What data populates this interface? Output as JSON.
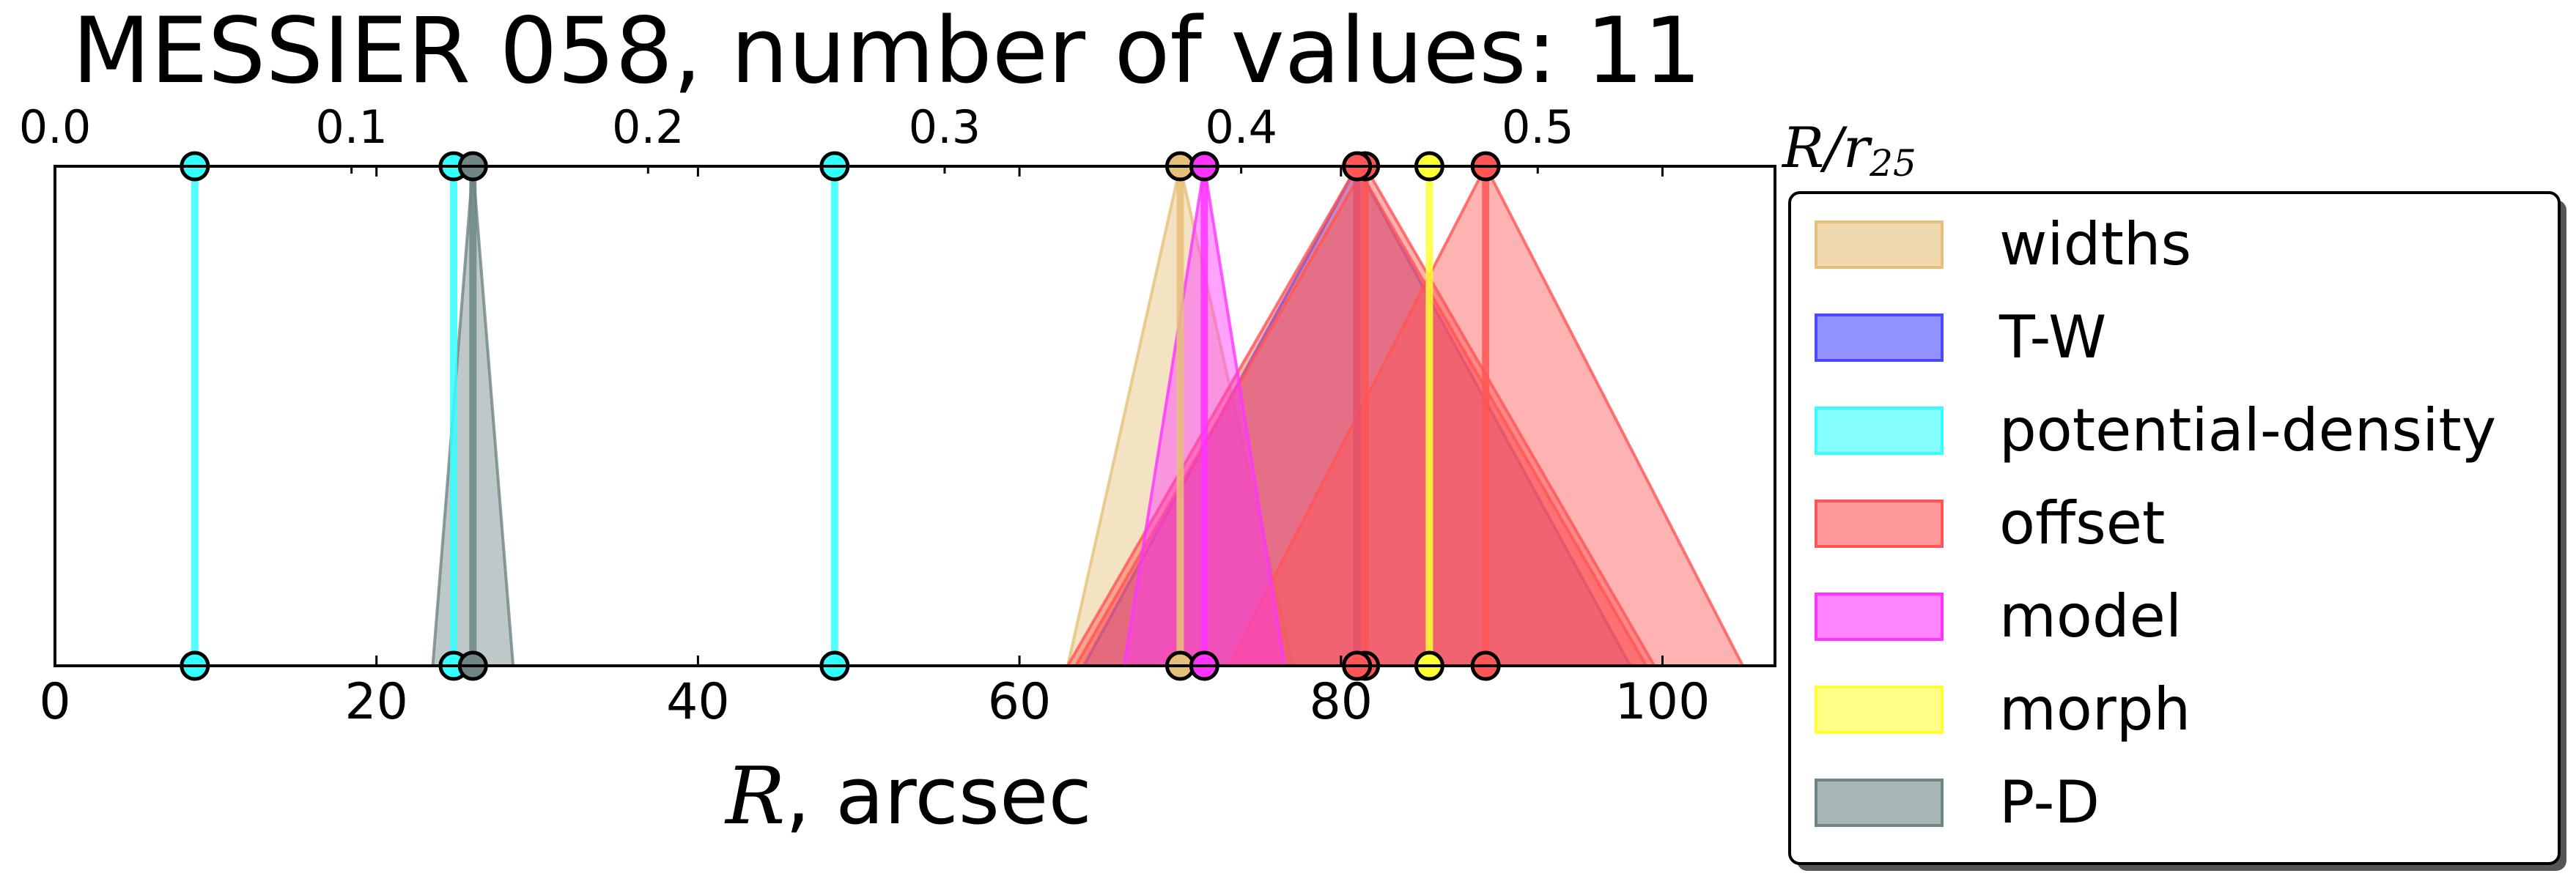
{
  "chart_data": {
    "type": "scatter",
    "title": "MESSIER 058, number of values: 11",
    "xlabel_var": "R",
    "xlabel_unit": ", arcsec",
    "top_axis_label": "R/r",
    "top_axis_label_sub": "25",
    "xlim": [
      0,
      107
    ],
    "xticks": [
      0,
      20,
      40,
      60,
      80,
      100
    ],
    "top_xlim": [
      0.0,
      0.58
    ],
    "top_xticks": [
      "0.0",
      "0.1",
      "0.2",
      "0.3",
      "0.4",
      "0.5"
    ],
    "legend_position": "right, outside plot",
    "series": [
      {
        "name": "widths",
        "color": "#e6c07a",
        "points": [
          {
            "x": 70.0,
            "err": 7.0
          }
        ]
      },
      {
        "name": "T-W",
        "color": "#4a4aff",
        "points": [
          {
            "x": 81.0,
            "err": 17.0
          }
        ]
      },
      {
        "name": "potential-density",
        "color": "#33ffff",
        "points": [
          {
            "x": 8.7,
            "err": 0.0
          },
          {
            "x": 24.8,
            "err": 0.0
          },
          {
            "x": 48.5,
            "err": 0.0
          }
        ]
      },
      {
        "name": "offset",
        "color": "#ff5555",
        "points": [
          {
            "x": 81.5,
            "err": 18.0
          },
          {
            "x": 89.0,
            "err": 16.0
          },
          {
            "x": 81.0,
            "err": 18.0
          }
        ]
      },
      {
        "name": "model",
        "color": "#ff33ff",
        "points": [
          {
            "x": 71.5,
            "err": 5.0
          }
        ]
      },
      {
        "name": "morph",
        "color": "#ffff33",
        "points": [
          {
            "x": 85.5,
            "err": 0.0
          }
        ]
      },
      {
        "name": "P-D",
        "color": "#6f8585",
        "points": [
          {
            "x": 26.0,
            "err": 2.5
          }
        ]
      }
    ],
    "legend": [
      "widths",
      "T-W",
      "potential-density",
      "offset",
      "model",
      "morph",
      "P-D"
    ]
  }
}
